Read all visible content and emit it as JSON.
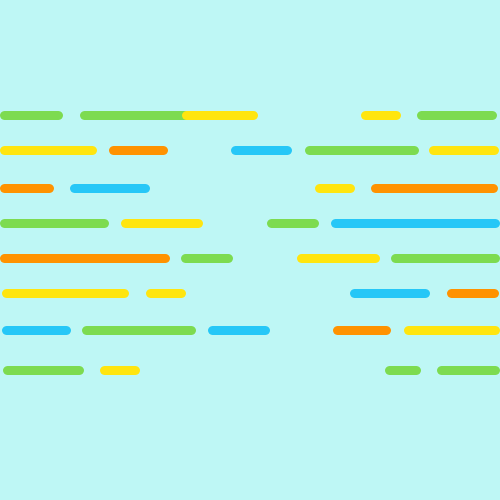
{
  "palette": {
    "background": "#bef7f5",
    "green": "#7ddb50",
    "yellow": "#ffe50f",
    "orange": "#ff9200",
    "blue": "#26c7f7"
  },
  "rows": [
    [
      "green",
      "green",
      "yellow",
      "yellow",
      "green"
    ],
    [
      "yellow",
      "orange",
      "blue",
      "green",
      "yellow"
    ],
    [
      "orange",
      "blue",
      "yellow",
      "orange"
    ],
    [
      "green",
      "yellow",
      "green",
      "blue"
    ],
    [
      "orange",
      "green",
      "yellow",
      "green"
    ],
    [
      "yellow",
      "yellow",
      "blue",
      "orange"
    ],
    [
      "blue",
      "green",
      "blue",
      "orange",
      "yellow"
    ],
    [
      "green",
      "yellow",
      "green",
      "green"
    ]
  ]
}
